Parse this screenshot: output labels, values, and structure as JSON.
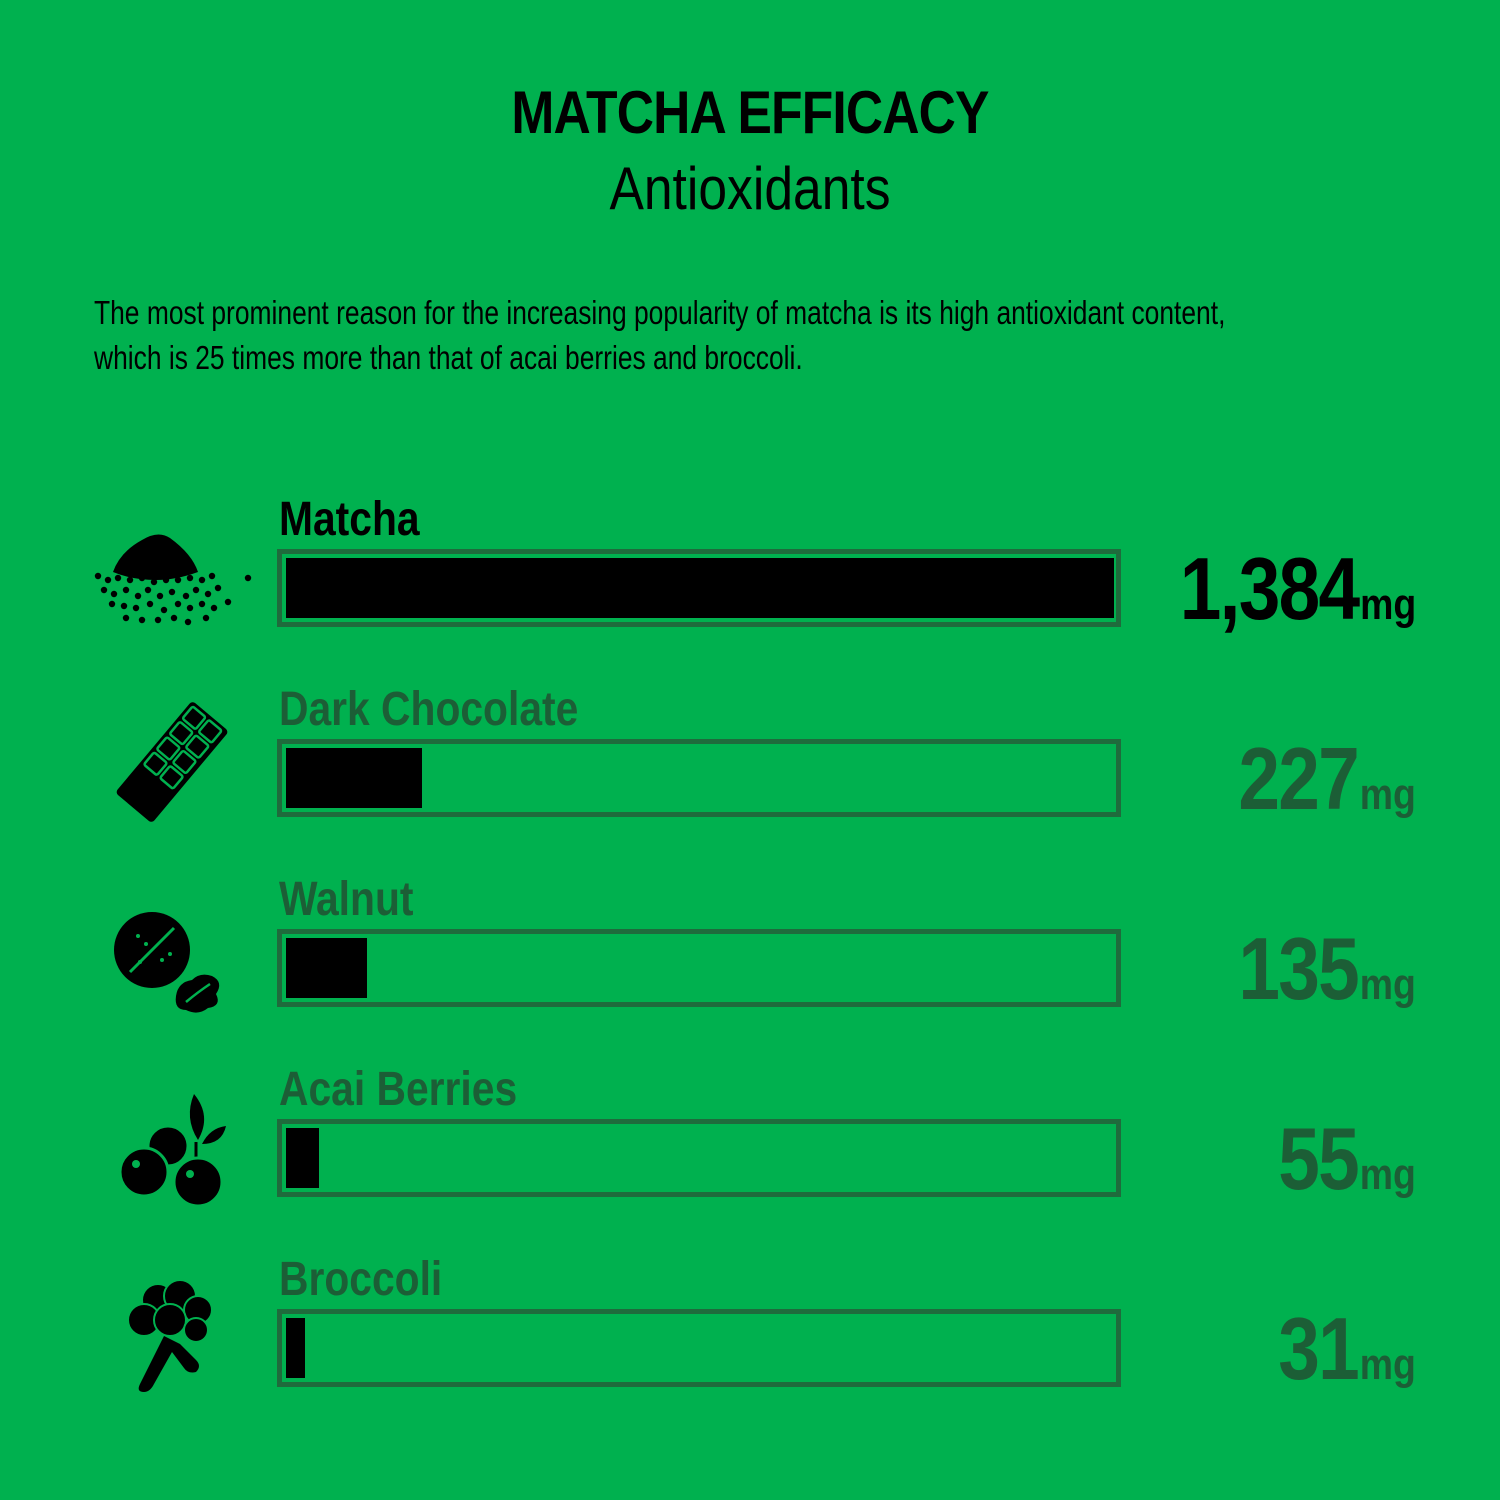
{
  "header": {
    "title": "MATCHA EFFICACY",
    "subtitle": "Antioxidants"
  },
  "description": {
    "line1": "The most prominent reason for the increasing popularity of matcha is its high antioxidant content,",
    "line2": "which is 25 times more than that of acai berries and broccoli."
  },
  "colors": {
    "background": "#00b14f",
    "bar_fill": "#000000",
    "bar_border": "#1f6b3c",
    "muted_text": "#1c5e36"
  },
  "chart_data": {
    "type": "bar",
    "orientation": "horizontal",
    "title": "MATCHA EFFICACY",
    "subtitle": "Antioxidants",
    "unit": "mg",
    "xlim": [
      0,
      1384
    ],
    "grid": false,
    "categories": [
      "Matcha",
      "Dark Chocolate",
      "Walnut",
      "Acai Berries",
      "Broccoli"
    ],
    "values": [
      1384,
      227,
      135,
      55,
      31
    ],
    "value_labels": [
      "1,384",
      "227",
      "135",
      "55",
      "31"
    ],
    "icons": [
      "matcha-powder-icon",
      "chocolate-bar-icon",
      "walnut-icon",
      "berries-icon",
      "broccoli-icon"
    ]
  }
}
